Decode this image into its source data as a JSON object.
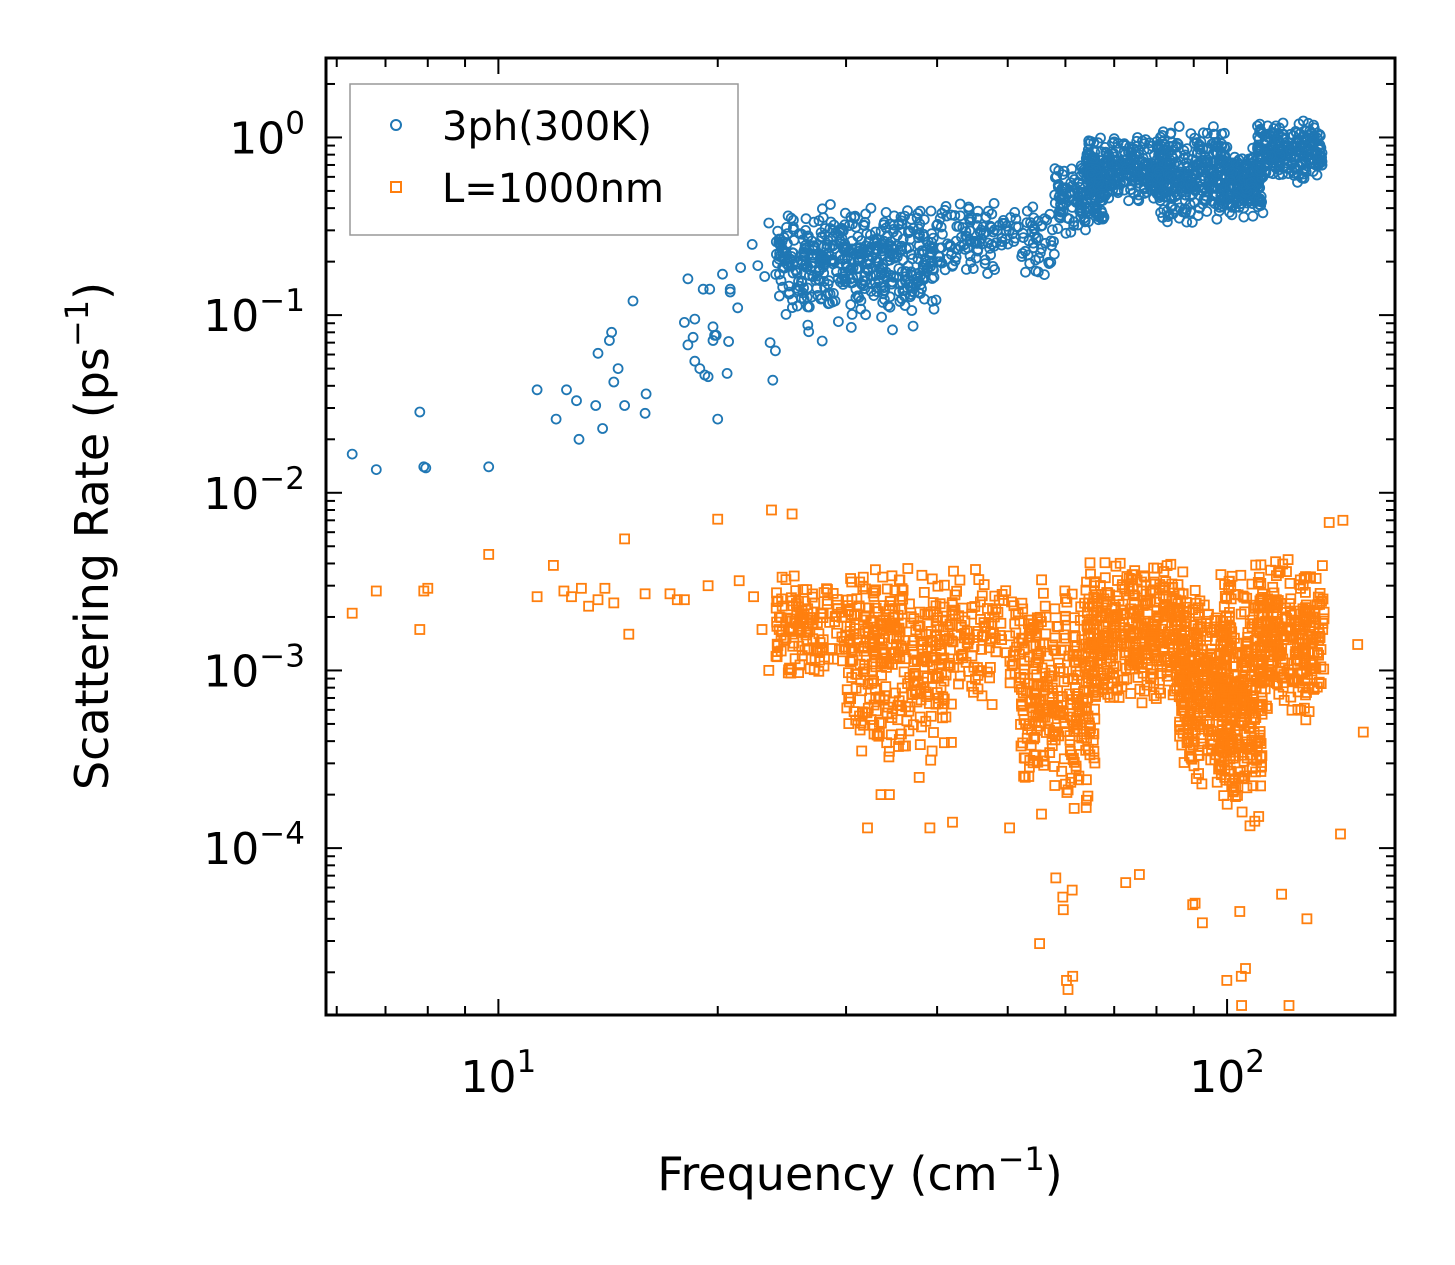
{
  "chart_data": {
    "type": "scatter",
    "title": "",
    "xlabel": "Frequency (cm$^{-1}$)",
    "ylabel": "Scattering Rate (ps$^{-1}$)",
    "xlabel_parts": {
      "text": "Frequency (cm",
      "sup": "−1",
      "close": ")"
    },
    "ylabel_parts": {
      "text": "Scattering Rate (ps",
      "sup": "−1",
      "close": ")"
    },
    "xscale": "log",
    "yscale": "log",
    "xlim": [
      5.8,
      170
    ],
    "ylim": [
      1.15e-05,
      2.8
    ],
    "x_ticks": [
      {
        "value": 10,
        "base": "10",
        "exp": "1"
      },
      {
        "value": 100,
        "base": "10",
        "exp": "2"
      }
    ],
    "y_ticks": [
      {
        "value": 1,
        "base": "10",
        "exp": "0"
      },
      {
        "value": 0.1,
        "base": "10",
        "exp": "−1"
      },
      {
        "value": 0.01,
        "base": "10",
        "exp": "−2"
      },
      {
        "value": 0.001,
        "base": "10",
        "exp": "−3"
      },
      {
        "value": 0.0001,
        "base": "10",
        "exp": "−4"
      }
    ],
    "legend_position": "top-left",
    "series": [
      {
        "name": "3ph(300K)",
        "marker": "circle",
        "color": "#1f77b4",
        "points": [
          [
            6.3,
            0.0165
          ],
          [
            6.8,
            0.0135
          ],
          [
            7.8,
            0.0285
          ],
          [
            7.9,
            0.014
          ],
          [
            7.95,
            0.0138
          ],
          [
            9.7,
            0.014
          ],
          [
            11.3,
            0.038
          ],
          [
            12.0,
            0.026
          ],
          [
            12.4,
            0.038
          ],
          [
            12.8,
            0.033
          ],
          [
            12.9,
            0.02
          ],
          [
            13.6,
            0.031
          ],
          [
            13.7,
            0.061
          ],
          [
            13.9,
            0.023
          ],
          [
            14.2,
            0.072
          ],
          [
            14.3,
            0.08
          ],
          [
            14.4,
            0.042
          ],
          [
            14.6,
            0.05
          ],
          [
            14.9,
            0.031
          ],
          [
            15.3,
            0.12
          ],
          [
            15.9,
            0.028
          ],
          [
            15.95,
            0.036
          ],
          [
            18.0,
            0.091
          ],
          [
            18.2,
            0.068
          ],
          [
            18.5,
            0.075
          ],
          [
            18.6,
            0.055
          ],
          [
            18.9,
            0.05
          ],
          [
            19.2,
            0.046
          ],
          [
            19.4,
            0.045
          ],
          [
            19.5,
            0.14
          ],
          [
            19.7,
            0.072
          ],
          [
            19.8,
            0.077
          ],
          [
            19.9,
            0.077
          ],
          [
            20.0,
            0.026
          ],
          [
            20.3,
            0.17
          ],
          [
            20.6,
            0.047
          ],
          [
            20.7,
            0.071
          ],
          [
            20.8,
            0.135
          ],
          [
            21.0,
            0.305
          ],
          [
            21.5,
            0.185
          ],
          [
            22.3,
            0.25
          ],
          [
            23.2,
            0.165
          ],
          [
            23.5,
            0.33
          ],
          [
            23.6,
            0.07
          ],
          [
            23.8,
            0.043
          ],
          [
            24.0,
            0.063
          ],
          [
            18.2,
            0.16
          ],
          [
            18.6,
            0.095
          ],
          [
            19.1,
            0.14
          ],
          [
            19.7,
            0.086
          ],
          [
            20.8,
            0.14
          ],
          [
            21.3,
            0.11
          ],
          [
            22.7,
            0.19
          ],
          [
            24.3,
            0.17
          ]
        ],
        "dense_bands": [
          {
            "x": [
              24,
              40
            ],
            "y": [
              0.1,
              0.42
            ],
            "n": 380
          },
          {
            "x": [
              26,
              38
            ],
            "y": [
              0.07,
              0.5
            ],
            "n": 120
          },
          {
            "x": [
              40,
              58
            ],
            "y": [
              0.16,
              0.45
            ],
            "n": 160
          },
          {
            "x": [
              58,
              68
            ],
            "y": [
              0.28,
              0.75
            ],
            "n": 150
          },
          {
            "x": [
              64,
              82
            ],
            "y": [
              0.4,
              1.05
            ],
            "n": 300
          },
          {
            "x": [
              80,
              100
            ],
            "y": [
              0.32,
              1.2
            ],
            "n": 320
          },
          {
            "x": [
              100,
              112
            ],
            "y": [
              0.35,
              0.9
            ],
            "n": 180
          },
          {
            "x": [
              110,
              135
            ],
            "y": [
              0.55,
              1.3
            ],
            "n": 240
          }
        ]
      },
      {
        "name": "L=1000nm",
        "marker": "square",
        "color": "#ff7f0e",
        "points": [
          [
            6.3,
            0.0021
          ],
          [
            6.8,
            0.0028
          ],
          [
            7.8,
            0.0017
          ],
          [
            7.9,
            0.0028
          ],
          [
            8.0,
            0.0029
          ],
          [
            9.7,
            0.0045
          ],
          [
            11.3,
            0.0026
          ],
          [
            11.9,
            0.0039
          ],
          [
            12.3,
            0.0028
          ],
          [
            12.6,
            0.0026
          ],
          [
            13.0,
            0.0029
          ],
          [
            13.3,
            0.0023
          ],
          [
            13.7,
            0.0025
          ],
          [
            14.0,
            0.0029
          ],
          [
            14.4,
            0.0024
          ],
          [
            14.9,
            0.0055
          ],
          [
            15.1,
            0.0016
          ],
          [
            15.9,
            0.0027
          ],
          [
            17.2,
            0.0027
          ],
          [
            17.6,
            0.0025
          ],
          [
            18.0,
            0.0025
          ],
          [
            19.4,
            0.003
          ],
          [
            20.0,
            0.0071
          ],
          [
            21.4,
            0.0032
          ],
          [
            22.4,
            0.0026
          ],
          [
            23.0,
            0.0017
          ],
          [
            23.5,
            0.001
          ],
          [
            23.7,
            0.008
          ],
          [
            24.3,
            0.002
          ],
          [
            25.3,
            0.0076
          ],
          [
            32.1,
            0.00013
          ],
          [
            33.5,
            0.0002
          ],
          [
            34.4,
            0.0002
          ],
          [
            37.8,
            0.00025
          ],
          [
            39.1,
            0.00013
          ],
          [
            42.0,
            0.00014
          ],
          [
            50.3,
            0.00013
          ],
          [
            55.3,
            2.9e-05
          ],
          [
            58.2,
            6.8e-05
          ],
          [
            59.5,
            5.3e-05
          ],
          [
            59.6,
            4.5e-05
          ],
          [
            60.2,
            1.8e-05
          ],
          [
            60.5,
            1.6e-05
          ],
          [
            61.3,
            5.8e-05
          ],
          [
            61.4,
            1.9e-05
          ],
          [
            72.6,
            6.4e-05
          ],
          [
            75.8,
            7.1e-05
          ],
          [
            89.7,
            4.8e-05
          ],
          [
            90.4,
            4.9e-05
          ],
          [
            92.5,
            3.8e-05
          ],
          [
            99.9,
            1.8e-05
          ],
          [
            104.1,
            4.4e-05
          ],
          [
            104.6,
            1.9e-05
          ],
          [
            104.7,
            1.3e-05
          ],
          [
            106.0,
            2.1e-05
          ],
          [
            118.8,
            5.5e-05
          ],
          [
            121.6,
            1.3e-05
          ],
          [
            128.7,
            4e-05
          ],
          [
            143.1,
            0.00012
          ],
          [
            151.1,
            0.0014
          ],
          [
            153.8,
            0.00045
          ],
          [
            144.2,
            0.007
          ],
          [
            138.1,
            0.0068
          ]
        ],
        "dense_bands": [
          {
            "x": [
              24,
              36
            ],
            "y": [
              0.0008,
              0.004
            ],
            "n": 260
          },
          {
            "x": [
              30,
              42
            ],
            "y": [
              0.0003,
              0.0025
            ],
            "n": 180
          },
          {
            "x": [
              36,
              56
            ],
            "y": [
              0.0006,
              0.004
            ],
            "n": 200
          },
          {
            "x": [
              52,
              66
            ],
            "y": [
              0.00015,
              0.003
            ],
            "n": 280
          },
          {
            "x": [
              64,
              88
            ],
            "y": [
              0.0006,
              0.0045
            ],
            "n": 420
          },
          {
            "x": [
              86,
              100
            ],
            "y": [
              0.0002,
              0.0035
            ],
            "n": 300
          },
          {
            "x": [
              98,
              112
            ],
            "y": [
              0.00012,
              0.004
            ],
            "n": 300
          },
          {
            "x": [
              110,
              136
            ],
            "y": [
              0.0005,
              0.0045
            ],
            "n": 300
          }
        ]
      }
    ]
  }
}
